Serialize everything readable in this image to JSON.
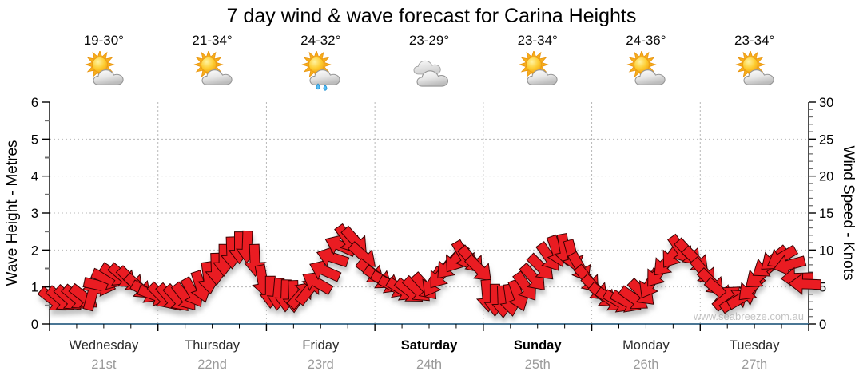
{
  "title": "7 day wind & wave forecast for Carina Heights",
  "watermark": "www.seabreeze.com.au",
  "axes": {
    "left": {
      "title": "Wave Height - Metres",
      "ticks": [
        "0",
        "1",
        "2",
        "3",
        "4",
        "5",
        "6"
      ],
      "range": [
        0,
        6
      ]
    },
    "right": {
      "title": "Wind Speed - Knots",
      "ticks": [
        "0",
        "5",
        "10",
        "15",
        "20",
        "25",
        "30"
      ],
      "range": [
        0,
        30
      ]
    },
    "bottom": {
      "minor_tick_hours": 6
    }
  },
  "days": [
    {
      "name": "Wednesday",
      "date": "21st",
      "temps": "19-30°",
      "icon": "sun-cloud",
      "bold": false
    },
    {
      "name": "Thursday",
      "date": "22nd",
      "temps": "21-34°",
      "icon": "sun-cloud",
      "bold": false
    },
    {
      "name": "Friday",
      "date": "23rd",
      "temps": "24-32°",
      "icon": "sun-cloud-rain",
      "bold": false
    },
    {
      "name": "Saturday",
      "date": "24th",
      "temps": "23-29°",
      "icon": "cloudy",
      "bold": true
    },
    {
      "name": "Sunday",
      "date": "25th",
      "temps": "23-34°",
      "icon": "sun-cloud",
      "bold": true
    },
    {
      "name": "Monday",
      "date": "26th",
      "temps": "24-36°",
      "icon": "sun-cloud",
      "bold": false
    },
    {
      "name": "Tuesday",
      "date": "27th",
      "temps": "23-34°",
      "icon": "sun-cloud",
      "bold": false
    }
  ],
  "chart_data": {
    "type": "scatter",
    "title": "7 day wind & wave forecast for Carina Heights",
    "description": "Chain of red wind arrows; vertical position = wind speed in knots (right axis; left axis metres = knots/5), arrow rotation = wind direction in degrees clockwise (0 = pointing right/east).",
    "categories": [
      "Wednesday 21st",
      "Thursday 22nd",
      "Friday 23rd",
      "Saturday 24th",
      "Sunday 25th",
      "Monday 26th",
      "Tuesday 27th"
    ],
    "points_per_day": 14,
    "ylim_left_metres": [
      0,
      6
    ],
    "ylim_right_knots": [
      0,
      30
    ],
    "grid": true,
    "legend": "none",
    "knots": [
      3.2,
      3.3,
      3.4,
      3.5,
      3.6,
      4.0,
      5.2,
      6.1,
      6.6,
      6.4,
      5.9,
      5.0,
      4.3,
      3.9,
      3.7,
      3.5,
      3.4,
      3.6,
      4.2,
      5.0,
      6.2,
      7.4,
      8.6,
      9.6,
      10.3,
      10.4,
      8.6,
      5.8,
      4.3,
      4.0,
      3.8,
      3.7,
      4.0,
      4.6,
      5.6,
      7.2,
      9.0,
      10.6,
      11.4,
      11.2,
      9.2,
      7.0,
      6.2,
      5.6,
      5.0,
      4.6,
      4.4,
      4.6,
      5.0,
      5.6,
      6.6,
      7.8,
      8.8,
      9.2,
      8.6,
      7.4,
      3.8,
      3.2,
      3.0,
      3.2,
      3.8,
      5.0,
      6.2,
      7.6,
      9.0,
      9.8,
      10.0,
      9.2,
      7.6,
      6.0,
      4.8,
      3.8,
      3.2,
      3.0,
      3.0,
      3.4,
      4.2,
      5.4,
      6.8,
      8.2,
      9.4,
      10.0,
      9.6,
      8.6,
      7.0,
      5.6,
      4.4,
      3.6,
      3.2,
      3.6,
      4.8,
      6.4,
      7.8,
      8.8,
      9.0,
      8.0,
      6.2,
      5.4
    ],
    "dir_deg": [
      38,
      40,
      42,
      40,
      38,
      -75,
      12,
      22,
      32,
      40,
      45,
      42,
      30,
      20,
      45,
      50,
      48,
      52,
      60,
      72,
      82,
      88,
      90,
      88,
      90,
      92,
      88,
      80,
      90,
      95,
      92,
      88,
      -48,
      -52,
      -150,
      -156,
      -162,
      -156,
      55,
      48,
      42,
      38,
      35,
      30,
      28,
      32,
      38,
      42,
      48,
      120,
      128,
      132,
      125,
      60,
      50,
      45,
      85,
      90,
      88,
      82,
      70,
      55,
      48,
      45,
      55,
      70,
      80,
      75,
      60,
      50,
      45,
      40,
      35,
      30,
      28,
      35,
      45,
      120,
      128,
      133,
      126,
      55,
      48,
      45,
      50,
      45,
      40,
      -40,
      -35,
      -30,
      135,
      140,
      145,
      140,
      150,
      165,
      178,
      182
    ]
  },
  "colors": {
    "arrow": "#ea1c23",
    "arrow_outline": "#3a0000",
    "grid": "#b8b8b8",
    "axis": "#000000",
    "bottom_axis": "#4a7694",
    "minor_tick": "#707070",
    "day_text": "#2b2b2b",
    "date_text": "#9a9a9a",
    "watermark": "#c3c3c3"
  }
}
